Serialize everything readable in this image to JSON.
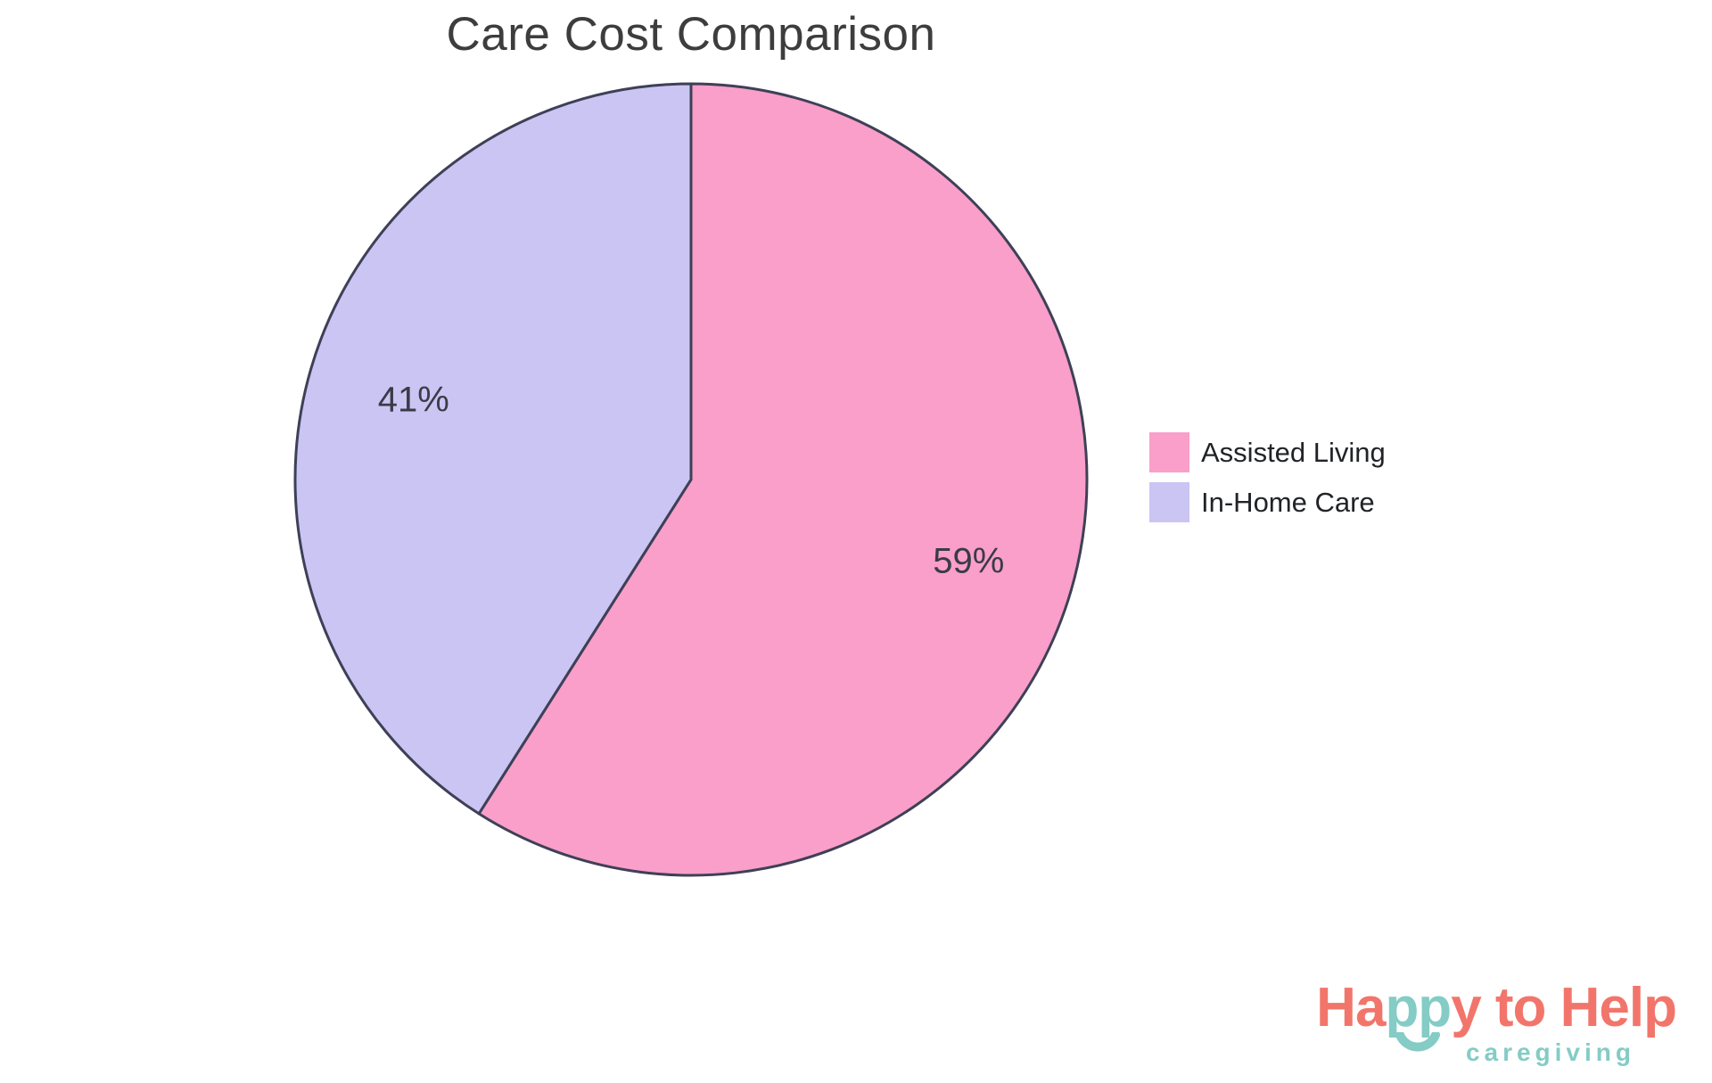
{
  "page": {
    "background": "#FFFFFF"
  },
  "chart_data": {
    "type": "pie",
    "title": "Care Cost Comparison",
    "categories": [
      "Assisted Living",
      "In-Home Care"
    ],
    "values": [
      59,
      41
    ],
    "slices": [
      {
        "label": "Assisted Living",
        "value": 59,
        "pct_label": "59%",
        "color": "#F99FC9"
      },
      {
        "label": "In-Home Care",
        "value": 41,
        "pct_label": "41%",
        "color": "#CAC5F3"
      }
    ],
    "start_angle_deg": 0,
    "direction": "clockwise",
    "outline_color": "#3E4057",
    "label_color": "#3A3B47",
    "title_color": "#3D3D3D",
    "legend_position": "right",
    "legend_text_color": "#212328"
  },
  "logo": {
    "part1": "Ha",
    "part2": "pp",
    "part3": "y to Help",
    "tagline": "caregiving",
    "coral": "#F2756B",
    "teal": "#84CCC5"
  }
}
